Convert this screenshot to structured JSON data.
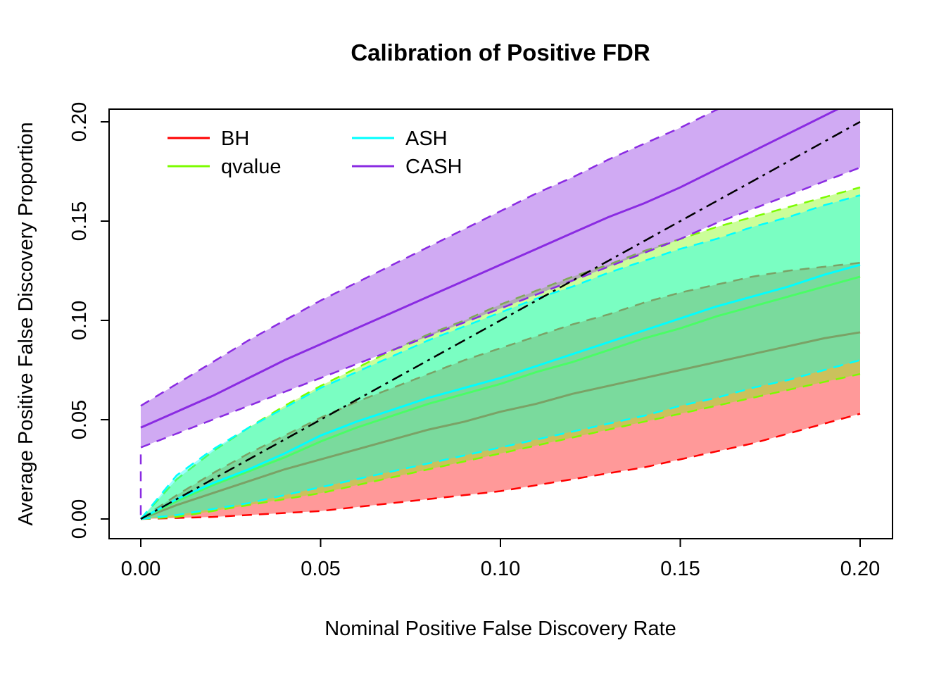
{
  "legend": {
    "items": [
      {
        "label": "BH",
        "color": "#FF0000"
      },
      {
        "label": "qvalue",
        "color": "#7CFC00"
      },
      {
        "label": "ASH",
        "color": "#00FFFF"
      },
      {
        "label": "CASH",
        "color": "#8A2BE2"
      }
    ]
  },
  "chart_data": {
    "type": "line",
    "title": "Calibration of Positive FDR",
    "xlabel": "Nominal Positive False Discovery Rate",
    "ylabel": "Average Positive False Discovery Proportion",
    "xlim": [
      0,
      0.2
    ],
    "ylim": [
      0,
      0.2
    ],
    "grid": false,
    "legend_position": "top-left",
    "x_ticks": {
      "values": [
        0,
        0.05,
        0.1,
        0.15,
        0.2
      ],
      "labels": [
        "0.00",
        "0.05",
        "0.10",
        "0.15",
        "0.20"
      ]
    },
    "y_ticks": {
      "values": [
        0,
        0.05,
        0.1,
        0.15,
        0.2
      ],
      "labels": [
        "0.00",
        "0.05",
        "0.10",
        "0.15",
        "0.20"
      ]
    },
    "reference_line": {
      "type": "dot-dash",
      "color": "#000000",
      "x": [
        0,
        0.2
      ],
      "y": [
        0,
        0.2
      ]
    },
    "x": [
      0,
      0.01,
      0.02,
      0.03,
      0.04,
      0.05,
      0.06,
      0.07,
      0.08,
      0.09,
      0.1,
      0.11,
      0.12,
      0.13,
      0.14,
      0.15,
      0.16,
      0.17,
      0.18,
      0.19,
      0.2
    ],
    "series": [
      {
        "name": "BH",
        "color": "#FF0000",
        "mean": [
          0,
          0.007,
          0.013,
          0.019,
          0.025,
          0.03,
          0.035,
          0.04,
          0.045,
          0.049,
          0.054,
          0.058,
          0.063,
          0.067,
          0.071,
          0.075,
          0.079,
          0.083,
          0.087,
          0.091,
          0.094
        ],
        "lower": [
          0,
          0.0005,
          0.001,
          0.002,
          0.003,
          0.004,
          0.006,
          0.008,
          0.01,
          0.012,
          0.014,
          0.017,
          0.02,
          0.023,
          0.026,
          0.03,
          0.034,
          0.038,
          0.043,
          0.048,
          0.053
        ],
        "upper": [
          0,
          0.012,
          0.023,
          0.033,
          0.042,
          0.051,
          0.059,
          0.066,
          0.073,
          0.08,
          0.086,
          0.092,
          0.098,
          0.103,
          0.109,
          0.114,
          0.118,
          0.122,
          0.125,
          0.127,
          0.129
        ]
      },
      {
        "name": "qvalue",
        "color": "#7CFC00",
        "mean": [
          0,
          0.009,
          0.017,
          0.024,
          0.031,
          0.039,
          0.046,
          0.052,
          0.058,
          0.063,
          0.068,
          0.074,
          0.079,
          0.085,
          0.091,
          0.096,
          0.102,
          0.107,
          0.112,
          0.117,
          0.122
        ],
        "lower": [
          0,
          0.001,
          0.004,
          0.007,
          0.01,
          0.013,
          0.017,
          0.021,
          0.025,
          0.029,
          0.033,
          0.037,
          0.041,
          0.045,
          0.049,
          0.053,
          0.057,
          0.061,
          0.065,
          0.069,
          0.073
        ],
        "upper": [
          0,
          0.02,
          0.034,
          0.046,
          0.057,
          0.067,
          0.076,
          0.085,
          0.093,
          0.1,
          0.108,
          0.115,
          0.122,
          0.128,
          0.135,
          0.141,
          0.147,
          0.152,
          0.157,
          0.162,
          0.167
        ]
      },
      {
        "name": "ASH",
        "color": "#00FFFF",
        "mean": [
          0,
          0.01,
          0.018,
          0.025,
          0.033,
          0.042,
          0.049,
          0.055,
          0.061,
          0.066,
          0.071,
          0.077,
          0.083,
          0.089,
          0.095,
          0.101,
          0.107,
          0.112,
          0.117,
          0.123,
          0.128
        ],
        "lower": [
          0,
          0.002,
          0.005,
          0.008,
          0.012,
          0.016,
          0.02,
          0.024,
          0.028,
          0.032,
          0.036,
          0.04,
          0.044,
          0.048,
          0.052,
          0.057,
          0.061,
          0.066,
          0.07,
          0.075,
          0.08
        ],
        "upper": [
          0,
          0.022,
          0.035,
          0.046,
          0.056,
          0.066,
          0.074,
          0.082,
          0.09,
          0.097,
          0.104,
          0.111,
          0.117,
          0.124,
          0.13,
          0.136,
          0.141,
          0.147,
          0.152,
          0.158,
          0.163
        ]
      },
      {
        "name": "CASH",
        "color": "#8A2BE2",
        "mean": [
          0.046,
          0.054,
          0.062,
          0.071,
          0.08,
          0.088,
          0.096,
          0.104,
          0.112,
          0.12,
          0.128,
          0.136,
          0.144,
          0.152,
          0.159,
          0.167,
          0.176,
          0.185,
          0.194,
          0.203,
          0.212
        ],
        "band_x": [
          0,
          0,
          0.01,
          0.02,
          0.03,
          0.04,
          0.05,
          0.06,
          0.07,
          0.08,
          0.09,
          0.1,
          0.11,
          0.12,
          0.13,
          0.14,
          0.15,
          0.16,
          0.17,
          0.18,
          0.19,
          0.2
        ],
        "lower": [
          0.002,
          0.036,
          0.043,
          0.05,
          0.057,
          0.064,
          0.071,
          0.078,
          0.085,
          0.092,
          0.099,
          0.106,
          0.113,
          0.12,
          0.127,
          0.134,
          0.141,
          0.149,
          0.156,
          0.163,
          0.17,
          0.177
        ],
        "upper": [
          0.057,
          0.057,
          0.068,
          0.079,
          0.09,
          0.1,
          0.11,
          0.119,
          0.128,
          0.137,
          0.146,
          0.155,
          0.164,
          0.172,
          0.181,
          0.189,
          0.197,
          0.206,
          0.214,
          0.222,
          0.23,
          0.238
        ]
      }
    ]
  }
}
